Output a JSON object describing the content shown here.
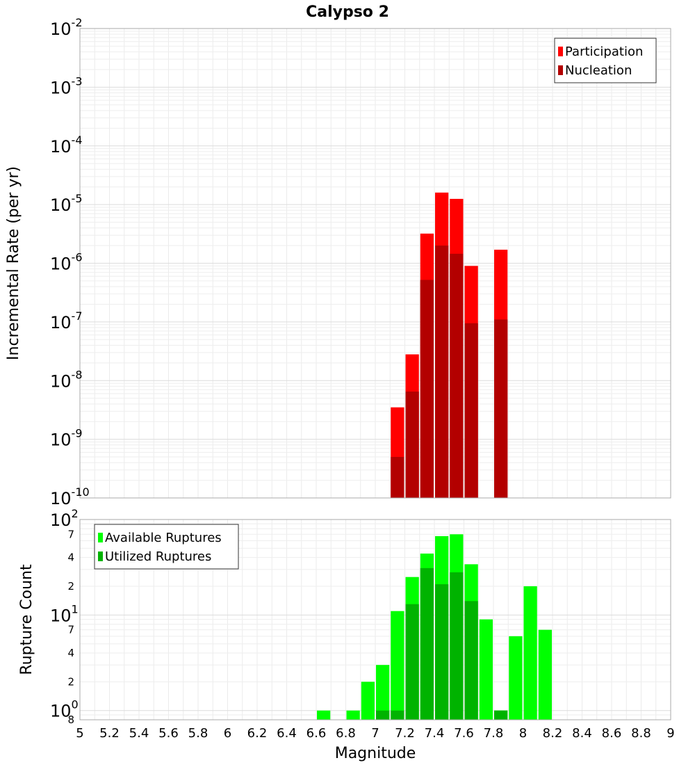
{
  "title": "Calypso 2",
  "chart_data": [
    {
      "type": "bar",
      "title": "Calypso 2",
      "xlabel": "Magnitude",
      "ylabel": "Incremental Rate (per yr)",
      "yscale": "log",
      "xlim": [
        5,
        9
      ],
      "ylim": [
        1e-10,
        0.01
      ],
      "bin_width": 0.1,
      "legend_position": "top-right",
      "y_tick_labels": [
        {
          "base": "10",
          "exp": "-10"
        },
        {
          "base": "10",
          "exp": "-9"
        },
        {
          "base": "10",
          "exp": "-8"
        },
        {
          "base": "10",
          "exp": "-7"
        },
        {
          "base": "10",
          "exp": "-6"
        },
        {
          "base": "10",
          "exp": "-5"
        },
        {
          "base": "10",
          "exp": "-4"
        },
        {
          "base": "10",
          "exp": "-3"
        },
        {
          "base": "10",
          "exp": "-2"
        }
      ],
      "series": [
        {
          "name": "Participation",
          "color": "#ff0000",
          "x": [
            7.15,
            7.25,
            7.35,
            7.45,
            7.55,
            7.65,
            7.85
          ],
          "values": [
            3.5e-09,
            2.8e-08,
            3.2e-06,
            1.6e-05,
            1.25e-05,
            9e-07,
            1.7e-06
          ]
        },
        {
          "name": "Nucleation",
          "color": "#b30000",
          "x": [
            7.15,
            7.25,
            7.35,
            7.45,
            7.55,
            7.65,
            7.85
          ],
          "values": [
            5e-10,
            6.5e-09,
            5.2e-07,
            2e-06,
            1.45e-06,
            9.5e-08,
            1.1e-07
          ]
        }
      ]
    },
    {
      "type": "bar",
      "xlabel": "Magnitude",
      "ylabel": "Rupture Count",
      "yscale": "log",
      "xlim": [
        5,
        9
      ],
      "ylim": [
        0.8,
        100
      ],
      "bin_width": 0.1,
      "legend_position": "top-left",
      "y_tick_labels": [
        {
          "base": "10",
          "exp": "0",
          "value": 1
        },
        {
          "base": "10",
          "exp": "1",
          "value": 10
        },
        {
          "base": "10",
          "exp": "2",
          "value": 100
        }
      ],
      "y_minor_labels": [
        {
          "label": "8",
          "value": 0.8
        },
        {
          "label": "2",
          "value": 2
        },
        {
          "label": "4",
          "value": 4
        },
        {
          "label": "7",
          "value": 7
        },
        {
          "label": "2",
          "value": 20
        },
        {
          "label": "4",
          "value": 40
        },
        {
          "label": "7",
          "value": 70
        }
      ],
      "series": [
        {
          "name": "Available Ruptures",
          "color": "#00ff00",
          "x": [
            6.65,
            6.85,
            6.95,
            7.05,
            7.15,
            7.25,
            7.35,
            7.45,
            7.55,
            7.65,
            7.75,
            7.85,
            7.95,
            8.05,
            8.15
          ],
          "values": [
            1,
            1,
            2,
            3,
            11,
            25,
            44,
            67,
            70,
            34,
            9,
            1,
            6,
            20,
            7
          ]
        },
        {
          "name": "Utilized Ruptures",
          "color": "#00b300",
          "x": [
            7.05,
            7.15,
            7.25,
            7.35,
            7.45,
            7.55,
            7.65,
            7.85
          ],
          "values": [
            1,
            1,
            13,
            31,
            21,
            28,
            14,
            1
          ]
        }
      ]
    }
  ],
  "x_ticks": [
    "5",
    "5.2",
    "5.4",
    "5.6",
    "5.8",
    "6",
    "6.2",
    "6.4",
    "6.6",
    "6.8",
    "7",
    "7.2",
    "7.4",
    "7.6",
    "7.8",
    "8",
    "8.2",
    "8.4",
    "8.6",
    "8.8",
    "9"
  ]
}
